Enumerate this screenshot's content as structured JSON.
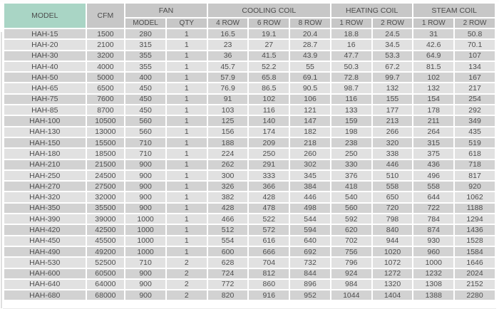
{
  "colors": {
    "model_header_bg": "#a9d5c5",
    "header_bg": "#c7c7c7",
    "row_dark": "#d2d2d2",
    "row_light": "#e1e1e1",
    "text": "#4d4d4d",
    "background": "#ffffff"
  },
  "table": {
    "header_groups": [
      {
        "label": "MODEL"
      },
      {
        "label": "CFM"
      },
      {
        "label": "FAN"
      },
      {
        "label": "COOLING COIL"
      },
      {
        "label": "HEATING COIL"
      },
      {
        "label": "STEAM COIL"
      }
    ],
    "sub_headers": [
      "MODEL",
      "QTY",
      "4 ROW",
      "6 ROW",
      "8 ROW",
      "1 ROW",
      "2 ROW",
      "1 ROW",
      "2 ROW"
    ],
    "rows": [
      [
        "HAH-15",
        "1500",
        "280",
        "1",
        "16.5",
        "19.1",
        "20.4",
        "18.8",
        "24.5",
        "31",
        "50.8"
      ],
      [
        "HAH-20",
        "2100",
        "315",
        "1",
        "23",
        "27",
        "28.7",
        "16",
        "34.5",
        "42.6",
        "70.1"
      ],
      [
        "HAH-30",
        "3200",
        "355",
        "1",
        "36",
        "41.5",
        "43.9",
        "47.7",
        "53.3",
        "64.9",
        "107"
      ],
      [
        "HAH-40",
        "4000",
        "355",
        "1",
        "45.7",
        "52.2",
        "55",
        "50.3",
        "67.2",
        "81.5",
        "134"
      ],
      [
        "HAH-50",
        "5000",
        "400",
        "1",
        "57.9",
        "65.8",
        "69.1",
        "72.8",
        "99.7",
        "102",
        "167"
      ],
      [
        "HAH-65",
        "6500",
        "450",
        "1",
        "76.9",
        "86.5",
        "90.5",
        "98.7",
        "132",
        "132",
        "217"
      ],
      [
        "HAH-75",
        "7600",
        "450",
        "1",
        "91",
        "102",
        "106",
        "116",
        "155",
        "154",
        "254"
      ],
      [
        "HAH-85",
        "8700",
        "450",
        "1",
        "103",
        "116",
        "121",
        "133",
        "177",
        "178",
        "292"
      ],
      [
        "HAH-100",
        "10500",
        "560",
        "1",
        "125",
        "140",
        "147",
        "159",
        "213",
        "211",
        "349"
      ],
      [
        "HAH-130",
        "13000",
        "560",
        "1",
        "156",
        "174",
        "182",
        "198",
        "266",
        "264",
        "435"
      ],
      [
        "HAH-150",
        "15500",
        "710",
        "1",
        "188",
        "209",
        "218",
        "238",
        "320",
        "315",
        "519"
      ],
      [
        "HAH-180",
        "18500",
        "710",
        "1",
        "224",
        "250",
        "260",
        "250",
        "338",
        "375",
        "618"
      ],
      [
        "HAH-210",
        "21500",
        "900",
        "1",
        "262",
        "291",
        "302",
        "330",
        "446",
        "436",
        "718"
      ],
      [
        "HAH-250",
        "24500",
        "900",
        "1",
        "300",
        "333",
        "345",
        "376",
        "510",
        "496",
        "817"
      ],
      [
        "HAH-270",
        "27500",
        "900",
        "1",
        "326",
        "366",
        "384",
        "418",
        "558",
        "558",
        "920"
      ],
      [
        "HAH-320",
        "32000",
        "900",
        "1",
        "382",
        "428",
        "446",
        "540",
        "650",
        "644",
        "1062"
      ],
      [
        "HAH-350",
        "35500",
        "900",
        "1",
        "428",
        "478",
        "498",
        "560",
        "720",
        "722",
        "1188"
      ],
      [
        "HAH-390",
        "39000",
        "1000",
        "1",
        "466",
        "522",
        "544",
        "592",
        "798",
        "784",
        "1294"
      ],
      [
        "HAH-420",
        "42500",
        "1000",
        "1",
        "512",
        "572",
        "594",
        "620",
        "840",
        "874",
        "1436"
      ],
      [
        "HAH-450",
        "45500",
        "1000",
        "1",
        "554",
        "616",
        "640",
        "702",
        "944",
        "930",
        "1528"
      ],
      [
        "HAH-490",
        "49200",
        "1000",
        "1",
        "600",
        "666",
        "692",
        "756",
        "1020",
        "960",
        "1584"
      ],
      [
        "HAH-530",
        "52500",
        "710",
        "2",
        "628",
        "704",
        "732",
        "796",
        "1072",
        "1000",
        "1646"
      ],
      [
        "HAH-600",
        "60500",
        "900",
        "2",
        "724",
        "812",
        "844",
        "924",
        "1272",
        "1232",
        "2024"
      ],
      [
        "HAH-640",
        "64000",
        "900",
        "2",
        "772",
        "860",
        "896",
        "984",
        "1320",
        "1308",
        "2152"
      ],
      [
        "HAH-680",
        "68000",
        "900",
        "2",
        "820",
        "916",
        "952",
        "1044",
        "1404",
        "1388",
        "2280"
      ]
    ]
  }
}
